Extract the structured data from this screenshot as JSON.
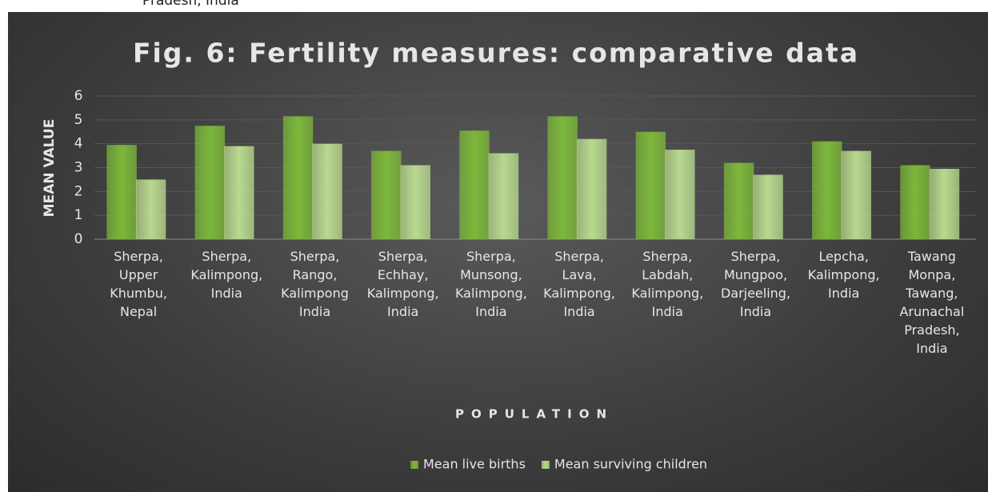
{
  "caption_fragment": "Pradesh, India",
  "chart_data": {
    "type": "bar",
    "title": "Fig. 6: Fertility measures: comparative data",
    "x_label": "POPULATION",
    "y_label": "MEAN VALUE",
    "categories": [
      "Sherpa,\nUpper\nKhumbu,\nNepal",
      "Sherpa,\nKalimpong,\nIndia",
      "Sherpa,\nRango,\nKalimpong\nIndia",
      "Sherpa,\nEchhay,\nKalimpong,\nIndia",
      "Sherpa,\nMunsong,\nKalimpong,\nIndia",
      "Sherpa,\nLava,\nKalimpong,\nIndia",
      "Sherpa,\nLabdah,\nKalimpong,\nIndia",
      "Sherpa,\nMungpoo,\nDarjeeling,\nIndia",
      "Lepcha,\nKalimpong,\nIndia",
      "Tawang\nMonpa,\nTawang,\nArunachal\nPradesh,\nIndia"
    ],
    "series": [
      {
        "name": "Mean live births",
        "color": "#7cb83a",
        "values": [
          3.95,
          4.75,
          5.15,
          3.7,
          4.55,
          5.15,
          4.5,
          3.2,
          4.1,
          3.1
        ]
      },
      {
        "name": "Mean surviving children",
        "color": "#b9d98e",
        "values": [
          2.5,
          3.9,
          4.0,
          3.1,
          3.6,
          4.2,
          3.75,
          2.7,
          3.7,
          2.95
        ]
      }
    ],
    "ylim": [
      0,
      6
    ],
    "yticks": [
      0,
      1,
      2,
      3,
      4,
      5,
      6
    ],
    "grid": true,
    "legend": "bottom"
  }
}
